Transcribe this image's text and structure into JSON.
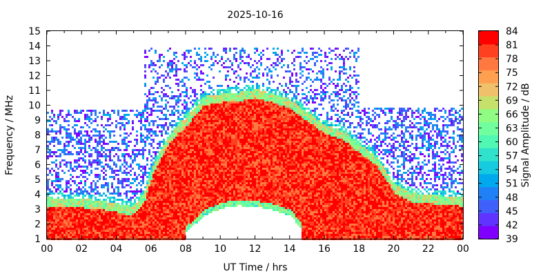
{
  "chart_data": {
    "type": "heatmap",
    "title": "2025-10-16",
    "xlabel": "UT Time / hrs",
    "ylabel": "Frequency / MHz",
    "xlim": [
      0,
      24
    ],
    "ylim": [
      1,
      15
    ],
    "x_ticks": [
      "00",
      "02",
      "04",
      "06",
      "08",
      "10",
      "12",
      "14",
      "16",
      "18",
      "20",
      "22",
      "00"
    ],
    "x_tick_values": [
      0,
      2,
      4,
      6,
      8,
      10,
      12,
      14,
      16,
      18,
      20,
      22,
      24
    ],
    "y_ticks": [
      "1",
      "2",
      "3",
      "4",
      "5",
      "6",
      "7",
      "8",
      "9",
      "10",
      "11",
      "12",
      "13",
      "14",
      "15"
    ],
    "colorbar": {
      "label": "Signal Amplitude / dB",
      "min": 39,
      "max": 84,
      "step": 3,
      "tick_labels": [
        "39",
        "42",
        "45",
        "48",
        "51",
        "54",
        "57",
        "60",
        "63",
        "66",
        "69",
        "72",
        "75",
        "78",
        "81",
        "84"
      ],
      "colors": [
        "#8000ff",
        "#6034fe",
        "#4060fb",
        "#2080f5",
        "#00a8ee",
        "#16cadf",
        "#30e2cc",
        "#50f8b4",
        "#70fe9e",
        "#90fc84",
        "#c6e06c",
        "#f0c06a",
        "#ffa050",
        "#ff7840",
        "#ff4020",
        "#ff0000"
      ]
    },
    "signal_envelope": {
      "description_values": "upper frequency (MHz) of strong signal vs UT hour",
      "x": [
        0,
        1,
        2,
        3,
        4,
        4.8,
        5.2,
        5.6,
        6,
        6.5,
        7,
        7.5,
        8,
        9,
        10,
        11,
        12,
        13,
        14,
        15,
        16,
        17,
        18,
        19,
        20,
        21,
        22,
        23,
        24
      ],
      "top_mhz": [
        3.6,
        3.5,
        3.5,
        3.4,
        3.2,
        3.0,
        3.3,
        4.0,
        5.5,
        6.8,
        7.8,
        8.5,
        9.0,
        10.4,
        10.6,
        10.7,
        10.9,
        10.6,
        10.2,
        9.3,
        8.5,
        8.1,
        7.2,
        6.3,
        4.5,
        3.9,
        3.8,
        3.7,
        3.6
      ],
      "floor_gap_mhz": {
        "x": [
          8,
          9,
          10,
          11,
          12,
          13,
          14,
          14.6
        ],
        "top": [
          1.5,
          2.6,
          3.1,
          3.3,
          3.2,
          3.0,
          2.6,
          1.8
        ]
      }
    },
    "noise_band": {
      "description_values": "upper frequency (MHz) of sparse noise returns vs UT hour",
      "segments": [
        {
          "x0": 0,
          "x1": 5.5,
          "top": 9.8
        },
        {
          "x0": 5.5,
          "x1": 18,
          "top": 13.9
        },
        {
          "x0": 18,
          "x1": 24,
          "top": 9.9
        }
      ]
    },
    "grid": false,
    "legend": "colorbar-right"
  }
}
